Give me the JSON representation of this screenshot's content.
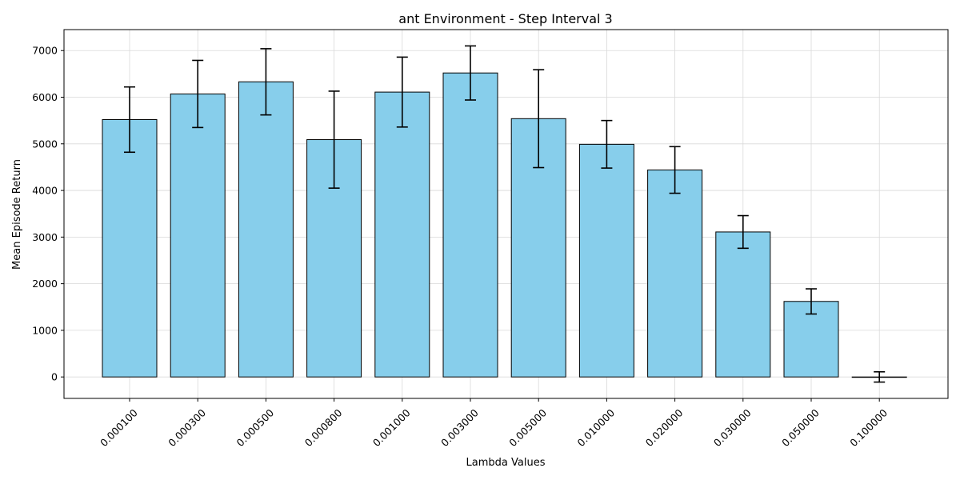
{
  "chart_data": {
    "type": "bar",
    "title": "ant Environment - Step Interval 3",
    "xlabel": "Lambda Values",
    "ylabel": "Mean Episode Return",
    "categories": [
      "0.000100",
      "0.000300",
      "0.000500",
      "0.000800",
      "0.001000",
      "0.003000",
      "0.005000",
      "0.010000",
      "0.020000",
      "0.030000",
      "0.050000",
      "0.100000"
    ],
    "values": [
      5520,
      6070,
      6330,
      5090,
      6110,
      6520,
      5540,
      4990,
      4440,
      3110,
      1620,
      0
    ],
    "errors": [
      700,
      720,
      710,
      1040,
      750,
      580,
      1050,
      510,
      500,
      350,
      270,
      110
    ],
    "ylim": [
      -460,
      7450
    ],
    "yticks": [
      0,
      1000,
      2000,
      3000,
      4000,
      5000,
      6000,
      7000
    ],
    "grid": true,
    "colors": {
      "bar_fill": "#87CEEB",
      "bar_edge": "#000000",
      "error_bar": "#000000",
      "grid": "#d9d9d9"
    }
  }
}
